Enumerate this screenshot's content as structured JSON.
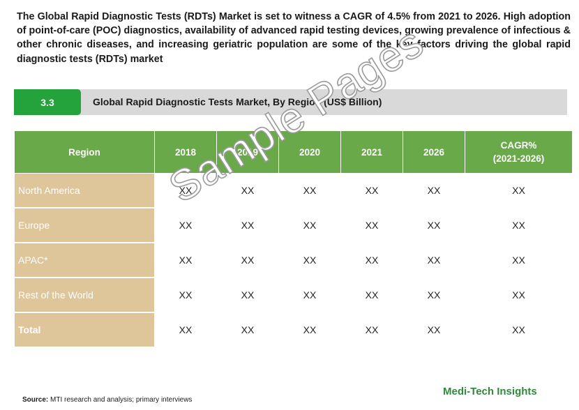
{
  "intro": "The Global Rapid Diagnostic Tests (RDTs) Market is set to witness a CAGR of 4.5% from 2021 to 2026. High adoption of point-of-care (POC) diagnostics, availability of advanced rapid testing devices, growing prevalence of infectious & other chronic diseases, and increasing geriatric population are some of the key factors driving the global rapid diagnostic tests (RDTs) market",
  "section": {
    "number": "3.3",
    "title": "Global Rapid Diagnostic Tests Market, By Region (US$ Billion)"
  },
  "table": {
    "headers": [
      "Region",
      "2018",
      "2019",
      "2020",
      "2021",
      "2026",
      "CAGR%",
      "(2021-2026)"
    ],
    "rows": [
      {
        "region": "North America",
        "values": [
          "XX",
          "XX",
          "XX",
          "XX",
          "XX",
          "XX"
        ]
      },
      {
        "region": "Europe",
        "values": [
          "XX",
          "XX",
          "XX",
          "XX",
          "XX",
          "XX"
        ]
      },
      {
        "region": "APAC*",
        "values": [
          "XX",
          "XX",
          "XX",
          "XX",
          "XX",
          "XX"
        ]
      },
      {
        "region": "Rest of the World",
        "values": [
          "XX",
          "XX",
          "XX",
          "XX",
          "XX",
          "XX"
        ]
      },
      {
        "region": "Total",
        "values": [
          "XX",
          "XX",
          "XX",
          "XX",
          "XX",
          "XX"
        ]
      }
    ]
  },
  "watermark": "Sample Pages",
  "brand": "Medi-Tech Insights",
  "source": {
    "label": "Source:",
    "text": " MTI research and analysis; primary interviews"
  },
  "colors": {
    "section_green": "#24a33c",
    "header_green": "#6aa94a",
    "region_tan": "#dfc59a",
    "bar_gray": "#d9d9d9",
    "brand_green": "#2f8a3a"
  }
}
